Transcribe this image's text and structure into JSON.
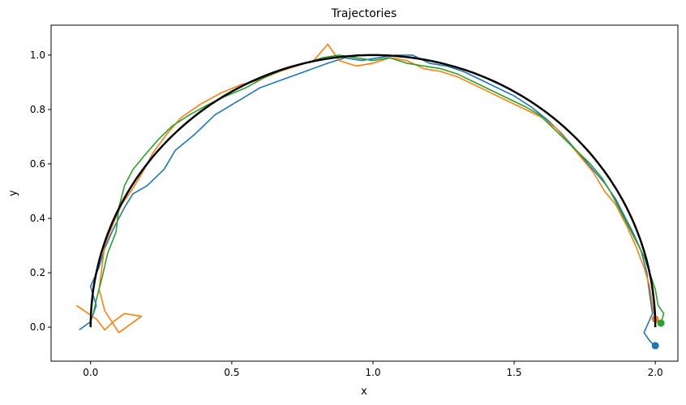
{
  "chart_data": {
    "type": "line",
    "title": "Trajectories",
    "xlabel": "x",
    "ylabel": "y",
    "xlim": [
      -0.14,
      2.08
    ],
    "ylim": [
      -0.125,
      1.11
    ],
    "xticks": [
      0.0,
      0.5,
      1.0,
      1.5,
      2.0
    ],
    "xtick_labels": [
      "0.0",
      "0.5",
      "1.0",
      "1.5",
      "2.0"
    ],
    "yticks": [
      0.0,
      0.2,
      0.4,
      0.6,
      0.8,
      1.0
    ],
    "ytick_labels": [
      "0.0",
      "0.2",
      "0.4",
      "0.6",
      "0.8",
      "1.0"
    ],
    "grid": false,
    "reference_curve": {
      "shape": "semicircle",
      "center": [
        1.0,
        0.0
      ],
      "radius": 1.0,
      "color": "#000000"
    },
    "series": [
      {
        "color": "#1f77b4",
        "points": [
          [
            -0.04,
            -0.01
          ],
          [
            0.0,
            0.02
          ],
          [
            0.02,
            0.08
          ],
          [
            0.0,
            0.15
          ],
          [
            0.03,
            0.22
          ],
          [
            0.05,
            0.29
          ],
          [
            0.08,
            0.36
          ],
          [
            0.12,
            0.44
          ],
          [
            0.15,
            0.49
          ],
          [
            0.2,
            0.52
          ],
          [
            0.26,
            0.58
          ],
          [
            0.3,
            0.65
          ],
          [
            0.37,
            0.71
          ],
          [
            0.44,
            0.78
          ],
          [
            0.52,
            0.83
          ],
          [
            0.6,
            0.88
          ],
          [
            0.68,
            0.91
          ],
          [
            0.76,
            0.94
          ],
          [
            0.84,
            0.97
          ],
          [
            0.9,
            0.99
          ],
          [
            0.96,
            0.98
          ],
          [
            1.02,
            0.99
          ],
          [
            1.08,
            1.0
          ],
          [
            1.14,
            1.0
          ],
          [
            1.2,
            0.97
          ],
          [
            1.26,
            0.96
          ],
          [
            1.32,
            0.94
          ],
          [
            1.38,
            0.91
          ],
          [
            1.44,
            0.88
          ],
          [
            1.5,
            0.85
          ],
          [
            1.56,
            0.81
          ],
          [
            1.62,
            0.76
          ],
          [
            1.67,
            0.71
          ],
          [
            1.72,
            0.65
          ],
          [
            1.77,
            0.59
          ],
          [
            1.82,
            0.53
          ],
          [
            1.86,
            0.47
          ],
          [
            1.89,
            0.41
          ],
          [
            1.92,
            0.35
          ],
          [
            1.95,
            0.28
          ],
          [
            1.97,
            0.2
          ],
          [
            1.98,
            0.12
          ],
          [
            1.99,
            0.05
          ],
          [
            1.96,
            -0.02
          ],
          [
            1.98,
            -0.05
          ],
          [
            2.0,
            -0.07
          ]
        ]
      },
      {
        "color": "#ff7f0e",
        "points": [
          [
            -0.05,
            0.08
          ],
          [
            0.02,
            0.03
          ],
          [
            0.05,
            -0.01
          ],
          [
            0.08,
            0.02
          ],
          [
            0.12,
            0.05
          ],
          [
            0.18,
            0.04
          ],
          [
            0.1,
            -0.02
          ],
          [
            0.05,
            0.06
          ],
          [
            0.03,
            0.14
          ],
          [
            0.04,
            0.22
          ],
          [
            0.05,
            0.3
          ],
          [
            0.08,
            0.38
          ],
          [
            0.11,
            0.45
          ],
          [
            0.15,
            0.51
          ],
          [
            0.19,
            0.58
          ],
          [
            0.22,
            0.64
          ],
          [
            0.27,
            0.71
          ],
          [
            0.32,
            0.77
          ],
          [
            0.39,
            0.82
          ],
          [
            0.46,
            0.86
          ],
          [
            0.53,
            0.89
          ],
          [
            0.6,
            0.91
          ],
          [
            0.67,
            0.94
          ],
          [
            0.73,
            0.96
          ],
          [
            0.79,
            0.98
          ],
          [
            0.84,
            1.04
          ],
          [
            0.88,
            0.98
          ],
          [
            0.94,
            0.96
          ],
          [
            1.0,
            0.97
          ],
          [
            1.06,
            0.99
          ],
          [
            1.12,
            0.98
          ],
          [
            1.18,
            0.95
          ],
          [
            1.24,
            0.94
          ],
          [
            1.3,
            0.92
          ],
          [
            1.36,
            0.89
          ],
          [
            1.42,
            0.86
          ],
          [
            1.48,
            0.83
          ],
          [
            1.54,
            0.8
          ],
          [
            1.6,
            0.77
          ],
          [
            1.65,
            0.73
          ],
          [
            1.7,
            0.67
          ],
          [
            1.74,
            0.62
          ],
          [
            1.78,
            0.57
          ],
          [
            1.82,
            0.5
          ],
          [
            1.86,
            0.45
          ],
          [
            1.9,
            0.37
          ],
          [
            1.93,
            0.3
          ],
          [
            1.96,
            0.22
          ],
          [
            1.98,
            0.15
          ],
          [
            1.99,
            0.08
          ],
          [
            2.0,
            0.03
          ]
        ]
      },
      {
        "color": "#2ca02c",
        "points": [
          [
            0.01,
            0.05
          ],
          [
            0.02,
            0.1
          ],
          [
            0.04,
            0.18
          ],
          [
            0.06,
            0.27
          ],
          [
            0.09,
            0.35
          ],
          [
            0.1,
            0.44
          ],
          [
            0.12,
            0.52
          ],
          [
            0.15,
            0.58
          ],
          [
            0.19,
            0.63
          ],
          [
            0.24,
            0.69
          ],
          [
            0.29,
            0.74
          ],
          [
            0.35,
            0.78
          ],
          [
            0.42,
            0.82
          ],
          [
            0.48,
            0.85
          ],
          [
            0.55,
            0.88
          ],
          [
            0.62,
            0.92
          ],
          [
            0.69,
            0.95
          ],
          [
            0.76,
            0.97
          ],
          [
            0.82,
            0.99
          ],
          [
            0.88,
            1.0
          ],
          [
            0.94,
            0.99
          ],
          [
            1.0,
            0.98
          ],
          [
            1.06,
            0.99
          ],
          [
            1.12,
            0.97
          ],
          [
            1.18,
            0.96
          ],
          [
            1.24,
            0.95
          ],
          [
            1.3,
            0.93
          ],
          [
            1.36,
            0.9
          ],
          [
            1.42,
            0.87
          ],
          [
            1.48,
            0.84
          ],
          [
            1.54,
            0.81
          ],
          [
            1.59,
            0.78
          ],
          [
            1.64,
            0.73
          ],
          [
            1.68,
            0.69
          ],
          [
            1.73,
            0.64
          ],
          [
            1.77,
            0.6
          ],
          [
            1.81,
            0.55
          ],
          [
            1.84,
            0.5
          ],
          [
            1.87,
            0.44
          ],
          [
            1.9,
            0.38
          ],
          [
            1.93,
            0.32
          ],
          [
            1.96,
            0.26
          ],
          [
            1.98,
            0.2
          ],
          [
            2.0,
            0.14
          ],
          [
            2.01,
            0.08
          ],
          [
            2.03,
            0.05
          ],
          [
            2.02,
            0.015
          ]
        ]
      }
    ],
    "end_markers": [
      {
        "color": "#1f77b4",
        "x": 2.0,
        "y": -0.068
      },
      {
        "color": "#ff7f0e",
        "x": 2.0,
        "y": 0.03
      },
      {
        "color": "#2ca02c",
        "x": 2.02,
        "y": 0.015
      }
    ]
  }
}
